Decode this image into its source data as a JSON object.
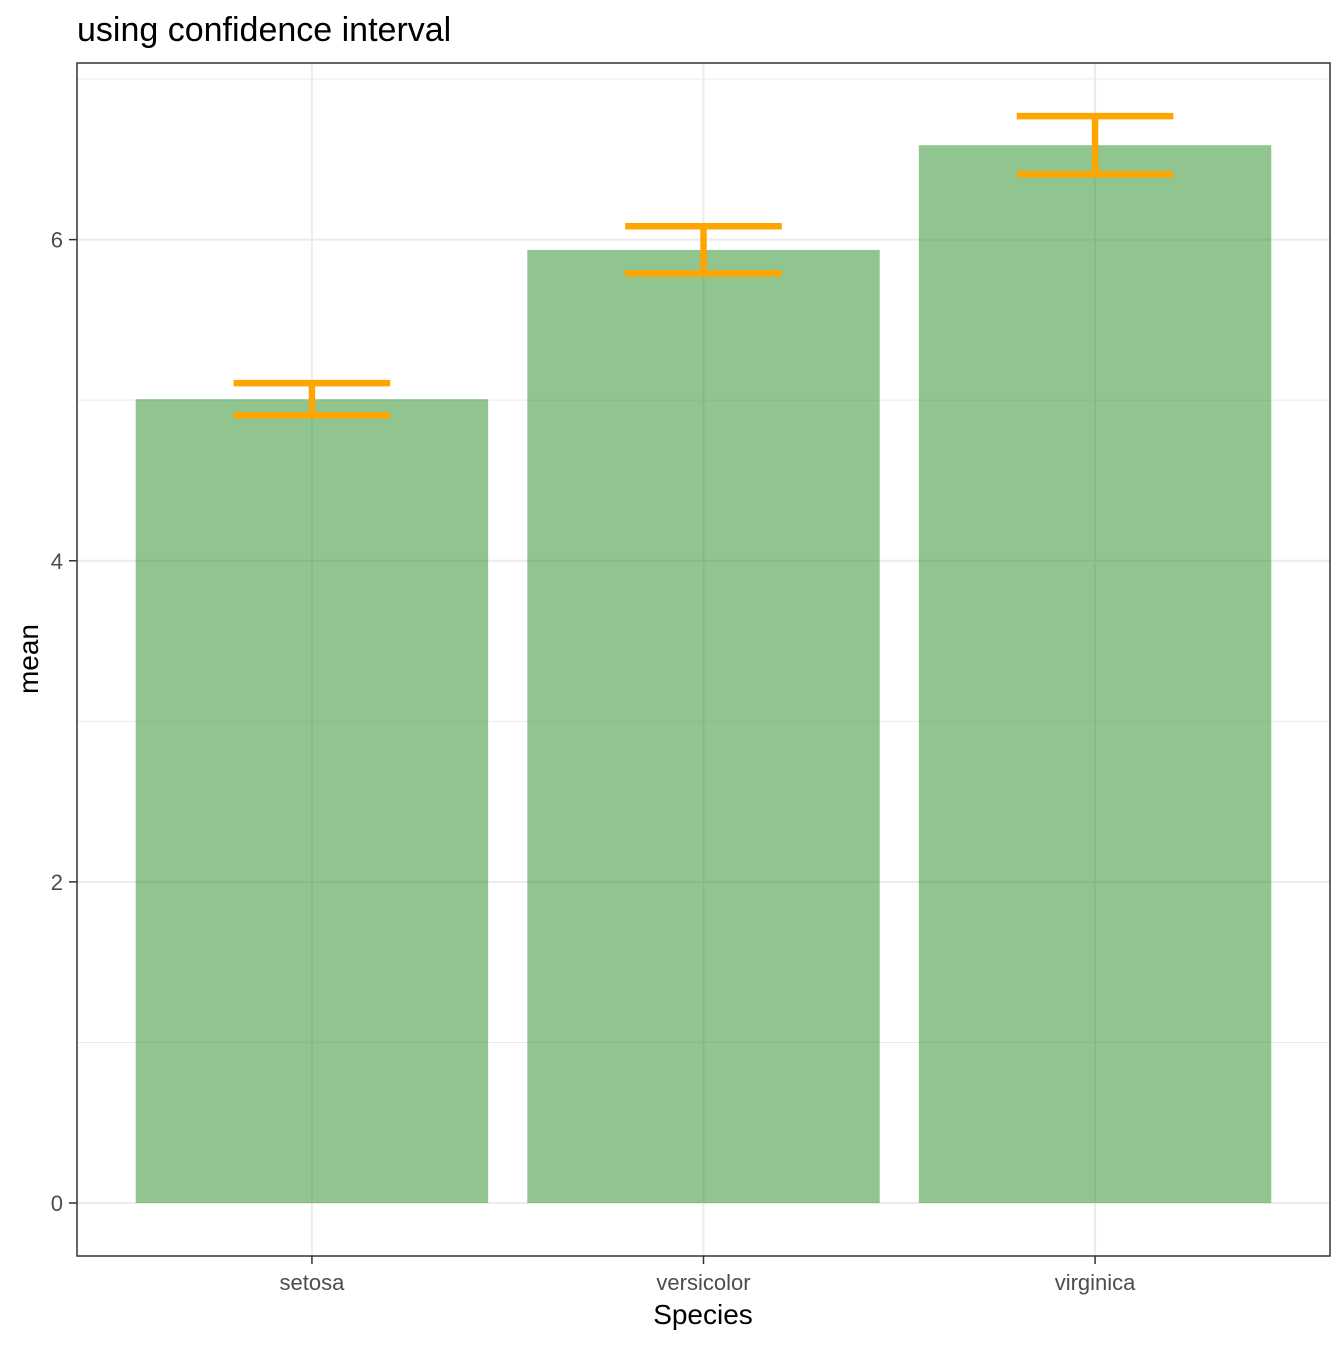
{
  "chart_data": {
    "type": "bar",
    "title": "using confidence interval",
    "xlabel": "Species",
    "ylabel": "mean",
    "categories": [
      "setosa",
      "versicolor",
      "virginica"
    ],
    "values": [
      5.006,
      5.936,
      6.588
    ],
    "error_bars": {
      "type": "confidence interval",
      "lower": [
        4.906,
        5.789,
        6.407
      ],
      "upper": [
        5.106,
        6.083,
        6.769
      ]
    },
    "ylim": [
      -0.33,
      7.1
    ],
    "yticks": [
      0,
      2,
      4,
      6
    ],
    "ytick_labels": [
      "0",
      "2",
      "4",
      "6"
    ],
    "grid": true,
    "legend": "none",
    "colors": {
      "bar": "#228B22",
      "bar_opacity": 0.5,
      "error_bar": "#FFA500",
      "panel_border": "#333333",
      "grid_major": "#EBEBEB",
      "tick_text": "#4D4D4D"
    }
  }
}
